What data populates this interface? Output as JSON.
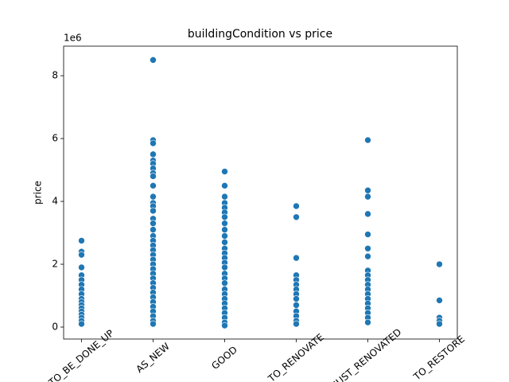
{
  "chart_data": {
    "type": "scatter",
    "title": "buildingCondition vs price",
    "y_label": "price",
    "y_offset_label": "1e6",
    "categories": [
      "TO_BE_DONE_UP",
      "AS_NEW",
      "GOOD",
      "TO_RENOVATE",
      "JUST_RENOVATED",
      "TO_RESTORE"
    ],
    "values": [
      [
        2.75,
        2.4,
        2.3,
        1.9,
        1.65,
        1.5,
        1.35,
        1.2,
        1.05,
        0.9,
        0.8,
        0.7,
        0.6,
        0.5,
        0.4,
        0.3,
        0.2,
        0.1
      ],
      [
        8.5,
        5.95,
        5.85,
        5.5,
        5.3,
        5.2,
        5.05,
        4.9,
        4.8,
        4.5,
        4.15,
        3.95,
        3.85,
        3.7,
        3.45,
        3.3,
        3.1,
        2.9,
        2.75,
        2.6,
        2.45,
        2.3,
        2.15,
        2.0,
        1.85,
        1.7,
        1.55,
        1.4,
        1.25,
        1.1,
        0.95,
        0.8,
        0.65,
        0.5,
        0.35,
        0.2,
        0.1
      ],
      [
        4.95,
        4.5,
        4.15,
        3.95,
        3.8,
        3.65,
        3.5,
        3.3,
        3.1,
        2.9,
        2.7,
        2.5,
        2.35,
        2.2,
        2.05,
        1.9,
        1.7,
        1.55,
        1.4,
        1.2,
        1.05,
        0.9,
        0.75,
        0.6,
        0.45,
        0.3,
        0.15,
        0.05
      ],
      [
        3.85,
        3.5,
        2.2,
        1.65,
        1.5,
        1.35,
        1.2,
        1.05,
        0.9,
        0.7,
        0.5,
        0.35,
        0.2,
        0.1
      ],
      [
        5.95,
        4.35,
        4.15,
        3.6,
        2.95,
        2.5,
        2.25,
        1.8,
        1.65,
        1.5,
        1.35,
        1.2,
        1.05,
        0.9,
        0.75,
        0.6,
        0.45,
        0.3,
        0.15
      ],
      [
        2.0,
        0.85,
        0.3,
        0.2,
        0.1
      ]
    ],
    "color": "#1f77b4",
    "ylim": [
      -0.38,
      8.94
    ],
    "yticks": [
      0,
      2,
      4,
      6,
      8
    ]
  }
}
